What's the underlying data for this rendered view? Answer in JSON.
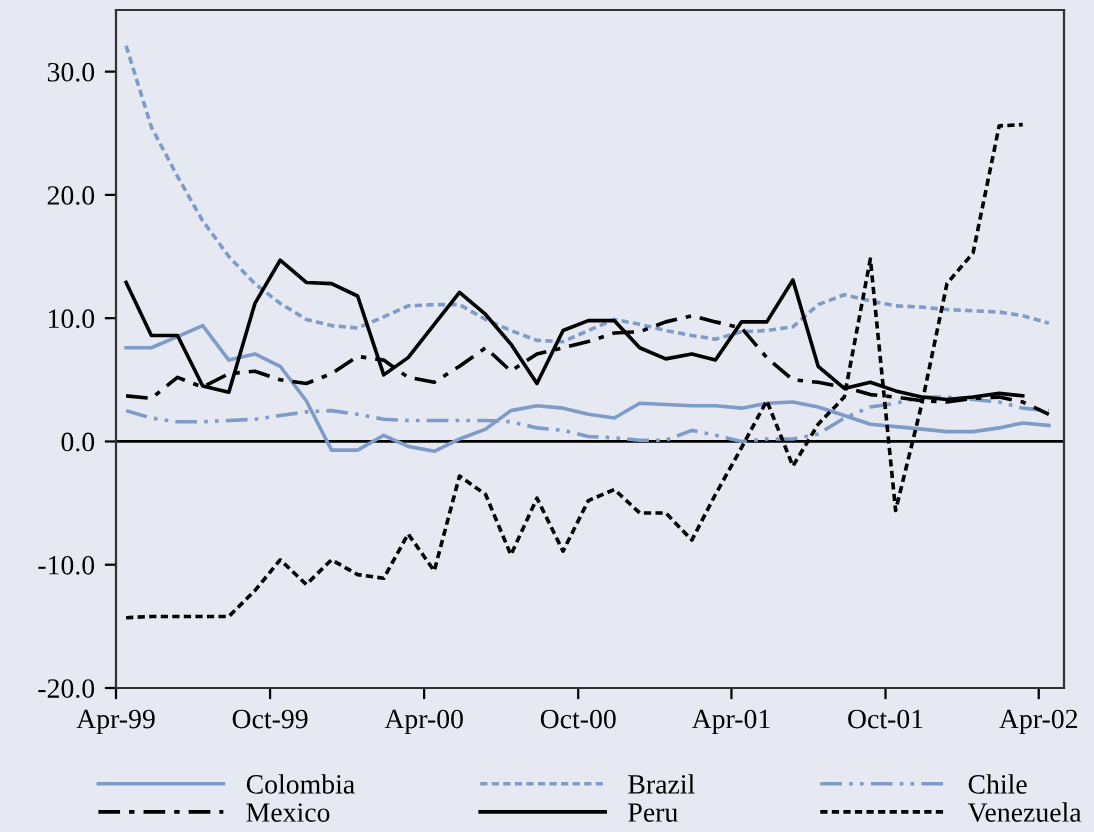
{
  "chart_data": {
    "type": "line",
    "x": [
      "1999-04-13",
      "1999-05-13",
      "1999-06-13",
      "1999-07-13",
      "1999-08-13",
      "1999-09-13",
      "1999-10-13",
      "1999-11-13",
      "1999-12-13",
      "2000-01-13",
      "2000-02-13",
      "2000-03-13",
      "2000-04-13",
      "2000-05-13",
      "2000-06-13",
      "2000-07-13",
      "2000-08-13",
      "2000-09-13",
      "2000-10-13",
      "2000-11-13",
      "2000-12-13",
      "2001-01-13",
      "2001-02-13",
      "2001-03-13",
      "2001-04-13",
      "2001-05-13",
      "2001-06-13",
      "2001-07-13",
      "2001-08-13",
      "2001-09-13",
      "2001-10-13",
      "2001-11-13",
      "2001-12-13",
      "2002-01-13",
      "2002-02-13",
      "2002-03-13",
      "2002-04-13"
    ],
    "series": [
      {
        "name": "Colombia",
        "color": "#7f9cc8",
        "line_style": "solid",
        "values": [
          7.6,
          7.6,
          8.5,
          9.4,
          6.6,
          7.1,
          6.1,
          3.3,
          -0.7,
          -0.7,
          0.5,
          -0.4,
          -0.8,
          0.2,
          1.0,
          2.5,
          2.9,
          2.7,
          2.2,
          1.9,
          3.1,
          3.0,
          2.9,
          2.9,
          2.7,
          3.1,
          3.2,
          2.8,
          2.1,
          1.4,
          1.2,
          1.0,
          0.8,
          0.8,
          1.1,
          1.5,
          1.3
        ]
      },
      {
        "name": "Brazil",
        "color": "#7f9cc8",
        "line_style": "dotted",
        "values": [
          32.1,
          25.5,
          21.5,
          17.9,
          15.0,
          12.8,
          11.2,
          9.9,
          9.4,
          9.2,
          10.1,
          11.0,
          11.1,
          11.1,
          9.9,
          9.0,
          8.2,
          8.1,
          9.0,
          9.9,
          9.5,
          9.0,
          8.6,
          8.3,
          8.9,
          9.0,
          9.3,
          11.1,
          11.9,
          11.4,
          11.0,
          10.9,
          10.7,
          10.6,
          10.5,
          10.2,
          9.6
        ]
      },
      {
        "name": "Chile",
        "color": "#7f9cc8",
        "line_style": "dashdotdot",
        "values": [
          2.5,
          1.9,
          1.6,
          1.6,
          1.7,
          1.8,
          2.1,
          2.4,
          2.5,
          2.2,
          1.8,
          1.7,
          1.7,
          1.7,
          1.7,
          1.6,
          1.1,
          0.9,
          0.4,
          0.3,
          0.1,
          0.1,
          0.9,
          0.5,
          0.0,
          0.2,
          0.2,
          0.6,
          1.9,
          2.8,
          3.1,
          3.6,
          3.6,
          3.4,
          3.2,
          2.7,
          2.5
        ]
      },
      {
        "name": "Mexico",
        "color": "#000000",
        "line_style": "dashdot",
        "values": [
          3.7,
          3.5,
          5.2,
          4.4,
          5.5,
          5.7,
          5.0,
          4.7,
          5.5,
          6.9,
          6.6,
          5.2,
          4.8,
          6.1,
          7.6,
          5.7,
          7.1,
          7.6,
          8.1,
          8.8,
          8.9,
          9.7,
          10.2,
          9.7,
          9.2,
          6.8,
          5.0,
          4.8,
          4.4,
          3.8,
          3.6,
          3.3,
          3.2,
          3.5,
          3.6,
          3.2,
          2.2
        ]
      },
      {
        "name": "Peru",
        "color": "#000000",
        "line_style": "solid",
        "values": [
          12.9,
          8.6,
          8.6,
          4.5,
          4.0,
          11.2,
          14.7,
          12.9,
          12.8,
          11.8,
          5.4,
          6.8,
          9.5,
          12.1,
          10.3,
          7.9,
          4.7,
          9.0,
          9.8,
          9.8,
          7.6,
          6.7,
          7.1,
          6.6,
          9.7,
          9.7,
          13.1,
          6.1,
          4.3,
          4.8,
          4.1,
          3.6,
          3.4,
          3.6,
          3.9,
          3.7,
          null
        ]
      },
      {
        "name": "Venezuela",
        "color": "#000000",
        "line_style": "dotted",
        "values": [
          -14.3,
          -14.2,
          -14.2,
          -14.2,
          -14.2,
          -12.1,
          -9.6,
          -11.6,
          -9.6,
          -10.8,
          -11.1,
          -7.5,
          -10.5,
          -2.8,
          -4.3,
          -9.2,
          -4.6,
          -8.9,
          -4.8,
          -3.9,
          -5.8,
          -5.8,
          -8.0,
          -4.3,
          -0.5,
          3.3,
          -2.0,
          1.4,
          3.6,
          14.8,
          -5.6,
          3.0,
          12.8,
          15.3,
          25.6,
          25.7,
          null
        ]
      }
    ],
    "xlim": [
      "1999-04-01",
      "2002-05-01"
    ],
    "xticks": [
      {
        "value": "1999-04-01",
        "label": "Apr-99"
      },
      {
        "value": "1999-10-01",
        "label": "Oct-99"
      },
      {
        "value": "2000-04-01",
        "label": "Apr-00"
      },
      {
        "value": "2000-10-01",
        "label": "Oct-00"
      },
      {
        "value": "2001-04-01",
        "label": "Apr-01"
      },
      {
        "value": "2001-10-01",
        "label": "Oct-01"
      },
      {
        "value": "2002-04-01",
        "label": "Apr-02"
      }
    ],
    "ylim": [
      -20,
      35
    ],
    "yticks": [
      {
        "value": -20,
        "label": "-20.0"
      },
      {
        "value": -10,
        "label": "-10.0"
      },
      {
        "value": 0,
        "label": "0.0"
      },
      {
        "value": 10,
        "label": "10.0"
      },
      {
        "value": 20,
        "label": "20.0"
      },
      {
        "value": 30,
        "label": "30.0"
      }
    ],
    "ref_lines": [
      {
        "axis": "y",
        "value": 0,
        "color": "#000000"
      }
    ],
    "grid": false,
    "legend": "bottom"
  }
}
